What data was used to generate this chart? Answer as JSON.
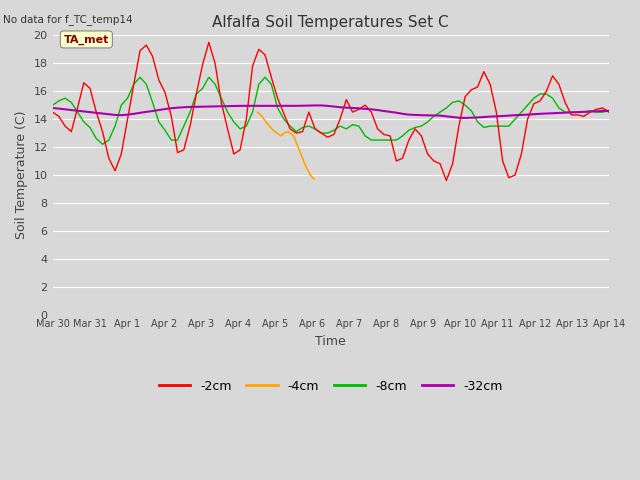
{
  "title": "Alfalfa Soil Temperatures Set C",
  "top_left_note": "No data for f_TC_temp14",
  "xlabel": "Time",
  "ylabel": "Soil Temperature (C)",
  "ylim": [
    0,
    20
  ],
  "yticks": [
    0,
    2,
    4,
    6,
    8,
    10,
    12,
    14,
    16,
    18,
    20
  ],
  "background_color": "#d8d8d8",
  "plot_bg_color": "#d8d8d8",
  "grid_color": "#ffffff",
  "annotation_box": "TA_met",
  "annotation_box_color": "#ffffcc",
  "annotation_box_text_color": "#8b0000",
  "legend_entries": [
    "-2cm",
    "-4cm",
    "-8cm",
    "-32cm"
  ],
  "legend_colors": [
    "#ff0000",
    "#ffa500",
    "#00bb00",
    "#aa00aa"
  ],
  "line_colors": {
    "2cm": "#ff0000",
    "4cm": "#ffa500",
    "8cm": "#00bb00",
    "32cm": "#aa00aa"
  },
  "x_tick_labels": [
    "Mar 30",
    "Mar 31",
    "Apr 1",
    "Apr 2",
    "Apr 3",
    "Apr 4",
    "Apr 5",
    "Apr 6",
    "Apr 7",
    "Apr 8",
    "Apr 9",
    "Apr 10",
    "Apr 11",
    "Apr 12",
    "Apr 13",
    "Apr 14"
  ],
  "x_tick_positions": [
    0,
    1,
    2,
    3,
    4,
    5,
    6,
    7,
    8,
    9,
    10,
    11,
    12,
    13,
    14,
    15
  ],
  "data_2cm": [
    14.5,
    14.2,
    13.5,
    13.1,
    14.8,
    16.6,
    16.2,
    14.5,
    13.1,
    11.2,
    10.3,
    11.5,
    14.0,
    16.5,
    18.9,
    19.3,
    18.5,
    16.8,
    15.9,
    14.2,
    11.6,
    11.8,
    13.5,
    15.8,
    17.9,
    19.5,
    18.0,
    15.2,
    13.3,
    11.5,
    11.8,
    14.0,
    17.8,
    19.0,
    18.6,
    17.0,
    15.5,
    14.4,
    13.3,
    13.0,
    13.1,
    14.5,
    13.3,
    13.0,
    12.7,
    12.9,
    14.0,
    15.4,
    14.5,
    14.7,
    15.0,
    14.5,
    13.3,
    12.9,
    12.8,
    11.0,
    11.2,
    12.5,
    13.3,
    12.8,
    11.5,
    11.0,
    10.8,
    9.6,
    10.8,
    13.5,
    15.6,
    16.1,
    16.3,
    17.4,
    16.5,
    14.5,
    11.0,
    9.8,
    10.0,
    11.5,
    14.0,
    15.1,
    15.3,
    16.0,
    17.1,
    16.5,
    15.2,
    14.3,
    14.3,
    14.2,
    14.5,
    14.7,
    14.8,
    14.5
  ],
  "data_4cm_x": [
    5.53,
    5.65,
    5.75,
    5.85,
    5.95,
    6.05,
    6.15,
    6.25,
    6.35,
    6.5,
    6.65,
    6.8,
    6.95,
    7.05
  ],
  "data_4cm_y": [
    14.5,
    14.2,
    13.8,
    13.5,
    13.2,
    13.0,
    12.8,
    13.0,
    13.1,
    12.8,
    11.8,
    10.8,
    10.0,
    9.7
  ],
  "data_8cm": [
    15.0,
    15.3,
    15.5,
    15.2,
    14.5,
    13.8,
    13.4,
    12.6,
    12.2,
    12.5,
    13.5,
    15.0,
    15.5,
    16.5,
    17.0,
    16.5,
    15.2,
    13.8,
    13.2,
    12.5,
    12.5,
    13.5,
    14.5,
    15.8,
    16.2,
    17.0,
    16.5,
    15.5,
    14.5,
    13.8,
    13.3,
    13.5,
    14.5,
    16.5,
    17.0,
    16.5,
    14.8,
    14.0,
    13.5,
    13.1,
    13.4,
    13.5,
    13.3,
    13.0,
    13.0,
    13.2,
    13.5,
    13.3,
    13.6,
    13.5,
    12.8,
    12.5,
    12.5,
    12.5,
    12.5,
    12.5,
    12.8,
    13.2,
    13.4,
    13.5,
    13.8,
    14.2,
    14.5,
    14.8,
    15.2,
    15.3,
    15.0,
    14.6,
    13.8,
    13.4,
    13.5,
    13.5,
    13.5,
    13.5,
    14.0,
    14.5,
    15.0,
    15.5,
    15.8,
    15.8,
    15.5,
    14.8,
    14.5,
    14.5,
    14.5,
    14.5,
    14.6,
    14.5,
    14.5,
    14.6
  ],
  "data_32cm": [
    14.8,
    14.75,
    14.7,
    14.65,
    14.6,
    14.55,
    14.5,
    14.45,
    14.4,
    14.35,
    14.3,
    14.28,
    14.32,
    14.38,
    14.45,
    14.52,
    14.58,
    14.65,
    14.72,
    14.78,
    14.82,
    14.85,
    14.87,
    14.88,
    14.89,
    14.9,
    14.91,
    14.92,
    14.93,
    14.94,
    14.95,
    14.95,
    14.95,
    14.95,
    14.95,
    14.95,
    14.95,
    14.95,
    14.95,
    14.95,
    14.96,
    14.97,
    14.98,
    14.98,
    14.95,
    14.9,
    14.85,
    14.82,
    14.8,
    14.77,
    14.73,
    14.7,
    14.65,
    14.58,
    14.52,
    14.46,
    14.38,
    14.32,
    14.3,
    14.28,
    14.27,
    14.26,
    14.25,
    14.2,
    14.15,
    14.1,
    14.08,
    14.1,
    14.12,
    14.15,
    14.18,
    14.2,
    14.22,
    14.25,
    14.28,
    14.3,
    14.32,
    14.35,
    14.38,
    14.4,
    14.42,
    14.44,
    14.46,
    14.48,
    14.5,
    14.52,
    14.54,
    14.56,
    14.58,
    14.6
  ]
}
